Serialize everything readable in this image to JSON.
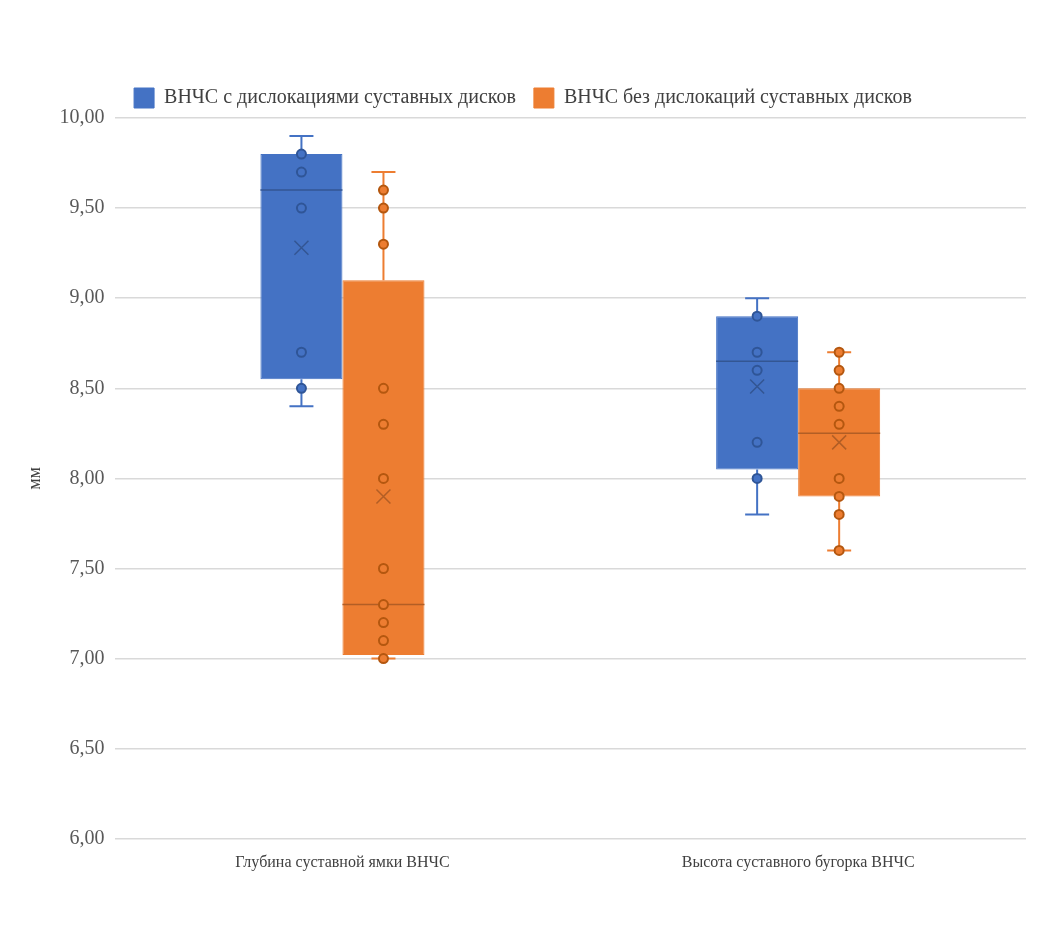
{
  "chart_data": {
    "type": "box",
    "ylabel": "мм",
    "categories": [
      "Глубина суставной ямки ВНЧС",
      "Высота суставного бугорка ВНЧС"
    ],
    "ylim": [
      6,
      10
    ],
    "yticks": [
      {
        "value": 6,
        "label": "6,00"
      },
      {
        "value": 6.5,
        "label": "6,50"
      },
      {
        "value": 7,
        "label": "7,00"
      },
      {
        "value": 7.5,
        "label": "7,50"
      },
      {
        "value": 8,
        "label": "8,00"
      },
      {
        "value": 8.5,
        "label": "8,50"
      },
      {
        "value": 9,
        "label": "9,00"
      },
      {
        "value": 9.5,
        "label": "9,50"
      },
      {
        "value": 10,
        "label": "10,00"
      }
    ],
    "grid": "y",
    "legend": "top",
    "series": [
      {
        "name": "ВНЧС с дислокациями суставных дисков",
        "color": "#4472c4",
        "boxes": [
          {
            "low": 8.4,
            "q1": 8.55,
            "median": 9.6,
            "q3": 9.8,
            "high": 9.9,
            "mean": 9.28
          },
          {
            "low": 7.8,
            "q1": 8.05,
            "median": 8.65,
            "q3": 8.9,
            "high": 9.0,
            "mean": 8.51
          }
        ]
      },
      {
        "name": "ВНЧС без дислокаций суставных дисков",
        "color": "#ed7d31",
        "boxes": [
          {
            "low": 7.0,
            "q1": 7.02,
            "median": 7.3,
            "q3": 9.1,
            "high": 9.7,
            "mean": 7.9
          },
          {
            "low": 7.6,
            "q1": 7.9,
            "median": 8.25,
            "q3": 8.5,
            "high": 8.7,
            "mean": 8.2
          }
        ]
      },
      {
        "type": "scatter",
        "color": "#2f5597",
        "x": [
          "Глубина суставной ямки ВНЧС",
          "Глубина суставной ямки ВНЧС",
          "Глубина суставной ямки ВНЧС",
          "Глубина суставной ямки ВНЧС",
          "Глубина суставной ямки ВНЧС",
          "Высота суставного бугорка ВНЧС",
          "Высота суставного бугорка ВНЧС",
          "Высота суставного бугорка ВНЧС",
          "Высота суставного бугорка ВНЧС",
          "Высота суставного бугорка ВНЧС"
        ],
        "values": [
          9.8,
          9.7,
          9.5,
          8.7,
          8.5,
          8.9,
          8.7,
          8.6,
          8.2,
          8.0
        ]
      },
      {
        "type": "scatter",
        "color": "#b4570f",
        "x": [
          "Глубина суставной ямки ВНЧС",
          "Глубина суставной ямки ВНЧС",
          "Глубина суставной ямки ВНЧС",
          "Глубина суставной ямки ВНЧС",
          "Глубина суставной ямки ВНЧС",
          "Глубина суставной ямки ВНЧС",
          "Глубина суставной ямки ВНЧС",
          "Глубина суставной ямки ВНЧС",
          "Глубина суставной ямки ВНЧС",
          "Глубина суставной ямки ВНЧС",
          "Глубина суставной ямки ВНЧС",
          "Высота суставного бугорка ВНЧС",
          "Высота суставного бугорка ВНЧС",
          "Высота суставного бугорка ВНЧС",
          "Высота суставного бугорка ВНЧС",
          "Высота суставного бугорка ВНЧС",
          "Высота суставного бугорка ВНЧС",
          "Высота суставного бугорка ВНЧС",
          "Высота суставного бугорка ВНЧС",
          "Высота суставного бугорка ВНЧС"
        ],
        "values": [
          9.6,
          9.5,
          9.3,
          8.5,
          8.3,
          8.0,
          7.5,
          7.3,
          7.2,
          7.1,
          7.0,
          8.7,
          8.6,
          8.5,
          8.4,
          8.3,
          8.0,
          7.9,
          7.8,
          7.6
        ]
      }
    ]
  }
}
